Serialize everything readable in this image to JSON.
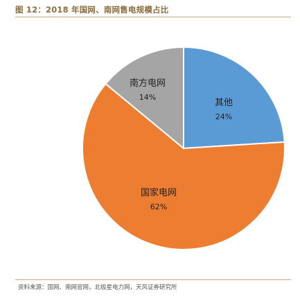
{
  "figure": {
    "title": "图 12：2018 年国网、南网售电规模占比",
    "source": "资料来源：国网、南网官网，北极星电力网，天风证券研究所"
  },
  "chart_data": {
    "type": "pie",
    "start_angle_deg": 0,
    "direction": "clockwise",
    "slices": [
      {
        "label": "其他",
        "value": 24,
        "value_label": "24%",
        "color": "#5b9bd5"
      },
      {
        "label": "国家电网",
        "value": 62,
        "value_label": "62%",
        "color": "#ed7d31"
      },
      {
        "label": "南方电网",
        "value": 14,
        "value_label": "14%",
        "color": "#a5a5a5"
      }
    ],
    "legend": "none"
  }
}
